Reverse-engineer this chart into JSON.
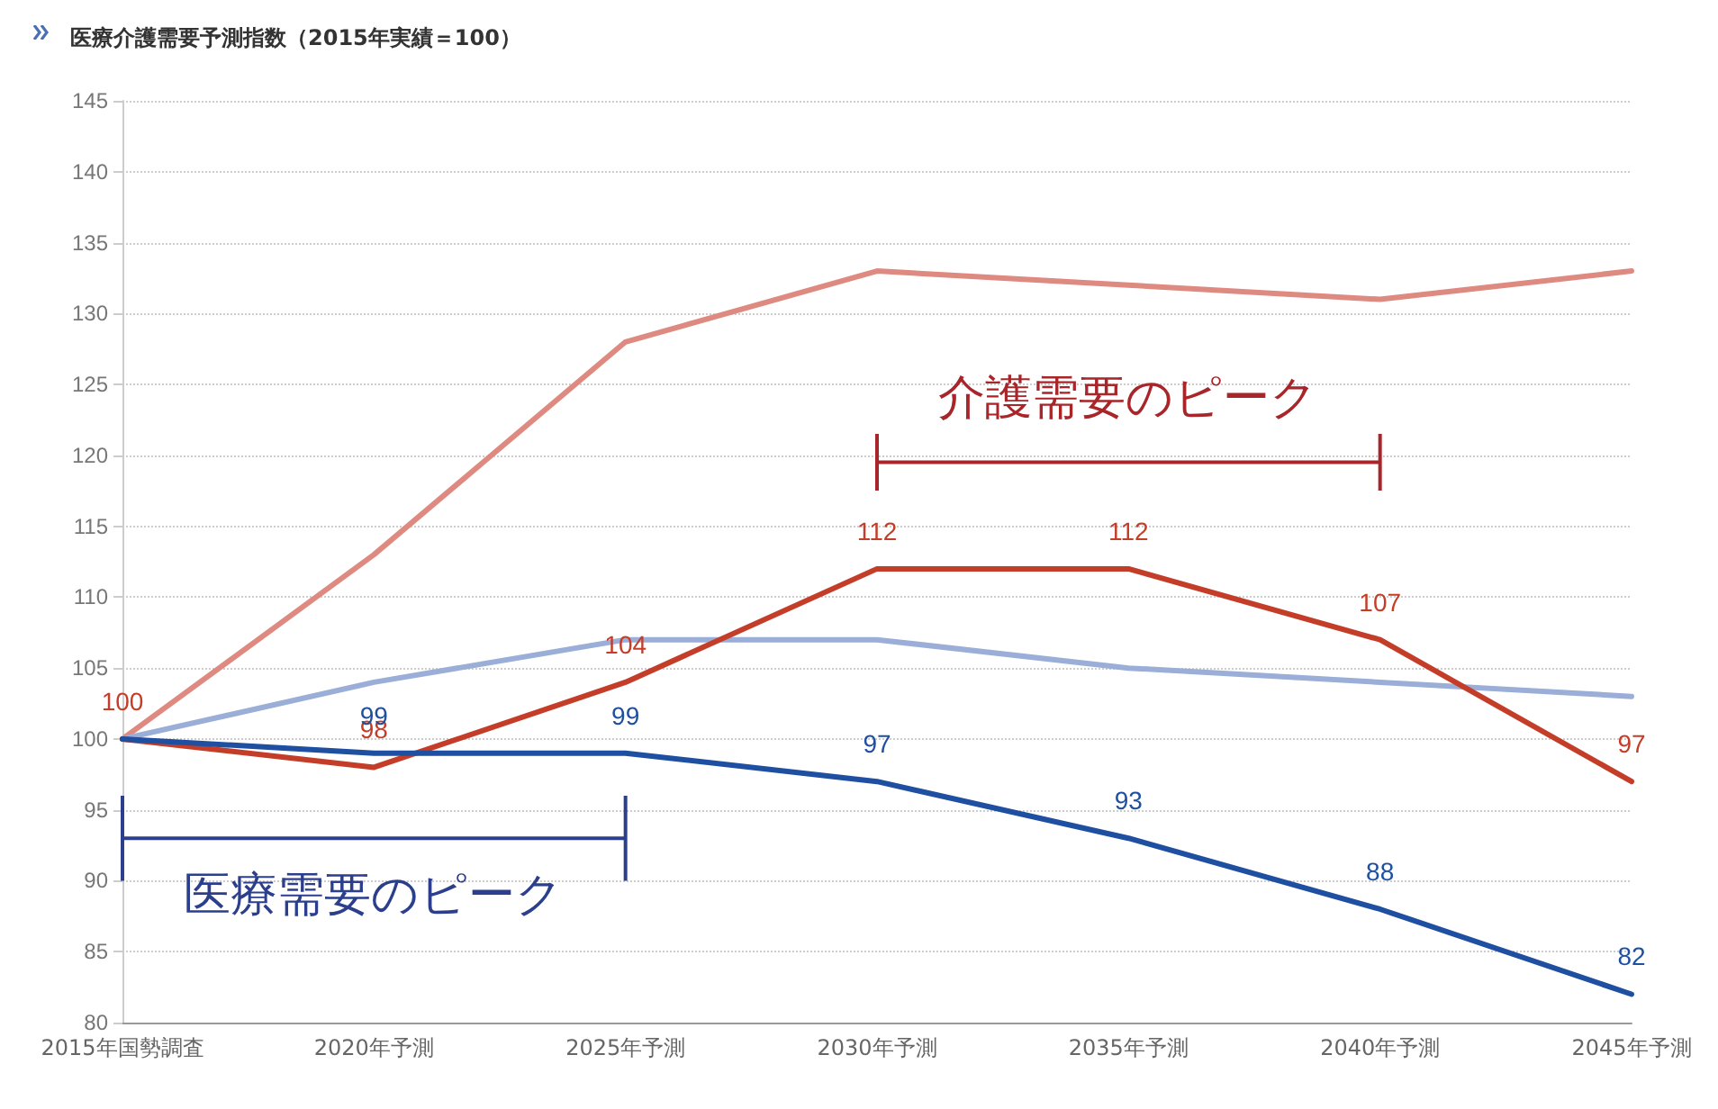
{
  "chart_data": {
    "type": "line",
    "title": "医療介護需要予測指数（2015年実績＝100）",
    "categories": [
      "2015年国勢調査",
      "2020年予測",
      "2025年予測",
      "2030年予測",
      "2035年予測",
      "2040年予測",
      "2045年予測"
    ],
    "series": [
      {
        "color": "#de8a80",
        "values": [
          100,
          113,
          128,
          133,
          132,
          131,
          133
        ]
      },
      {
        "color": "#9aaed8",
        "values": [
          100,
          104,
          107,
          107,
          105,
          104,
          103
        ]
      },
      {
        "color": "#c43d28",
        "values": [
          100,
          98,
          104,
          112,
          112,
          107,
          97
        ],
        "value_labels": [
          "100",
          "98",
          "104",
          "112",
          "112",
          "107",
          "97"
        ]
      },
      {
        "color": "#1f4fa0",
        "values": [
          100,
          99,
          99,
          97,
          93,
          88,
          82
        ],
        "value_labels": [
          null,
          "99",
          "99",
          "97",
          "93",
          "88",
          "82"
        ]
      }
    ],
    "ylim": [
      80,
      145
    ],
    "yticks": [
      80,
      85,
      90,
      95,
      100,
      105,
      110,
      115,
      120,
      125,
      130,
      135,
      140,
      145
    ],
    "grid": "y",
    "marker": "none",
    "line_style": "solid",
    "annotations": [
      "介護需要のピーク",
      "医療需要のピーク"
    ]
  }
}
